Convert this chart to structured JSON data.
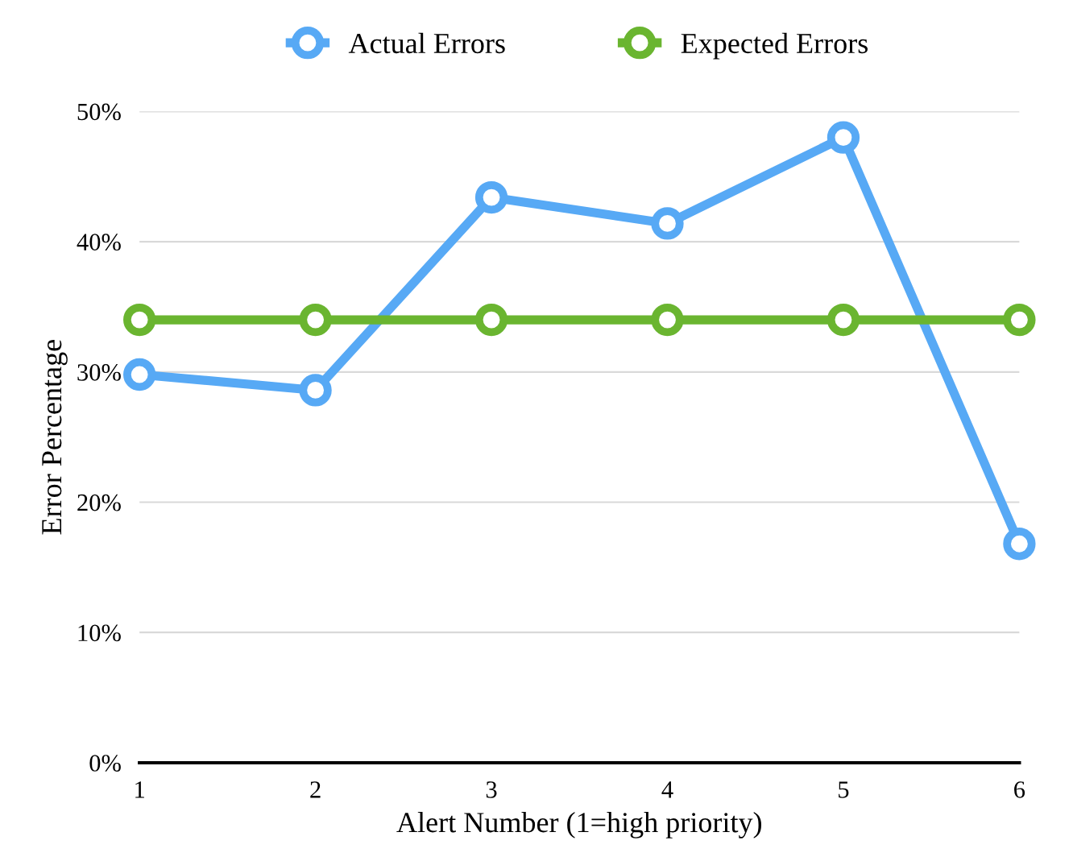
{
  "chart_data": {
    "type": "line",
    "xlabel": "Alert Number (1=high priority)",
    "ylabel": "Error Percentage",
    "x": [
      1,
      2,
      3,
      4,
      5,
      6
    ],
    "series": [
      {
        "name": "Actual Errors",
        "color": "#57a9f5",
        "values": [
          29.8,
          28.6,
          43.4,
          41.4,
          48.0,
          16.8
        ]
      },
      {
        "name": "Expected Errors",
        "color": "#6ab530",
        "values": [
          34,
          34,
          34,
          34,
          34,
          34
        ]
      }
    ],
    "xlim": [
      1,
      6
    ],
    "xticks": [
      1,
      2,
      3,
      4,
      5,
      6
    ],
    "ylim": [
      0,
      50
    ],
    "yticks": [
      {
        "value": 0,
        "label": "0%"
      },
      {
        "value": 10,
        "label": "10%"
      },
      {
        "value": 20,
        "label": "20%"
      },
      {
        "value": 30,
        "label": "30%"
      },
      {
        "value": 40,
        "label": "40%"
      },
      {
        "value": 50,
        "label": "50%"
      }
    ],
    "grid": "y",
    "legend": "top",
    "marker": "circle",
    "line_style": "solid"
  }
}
